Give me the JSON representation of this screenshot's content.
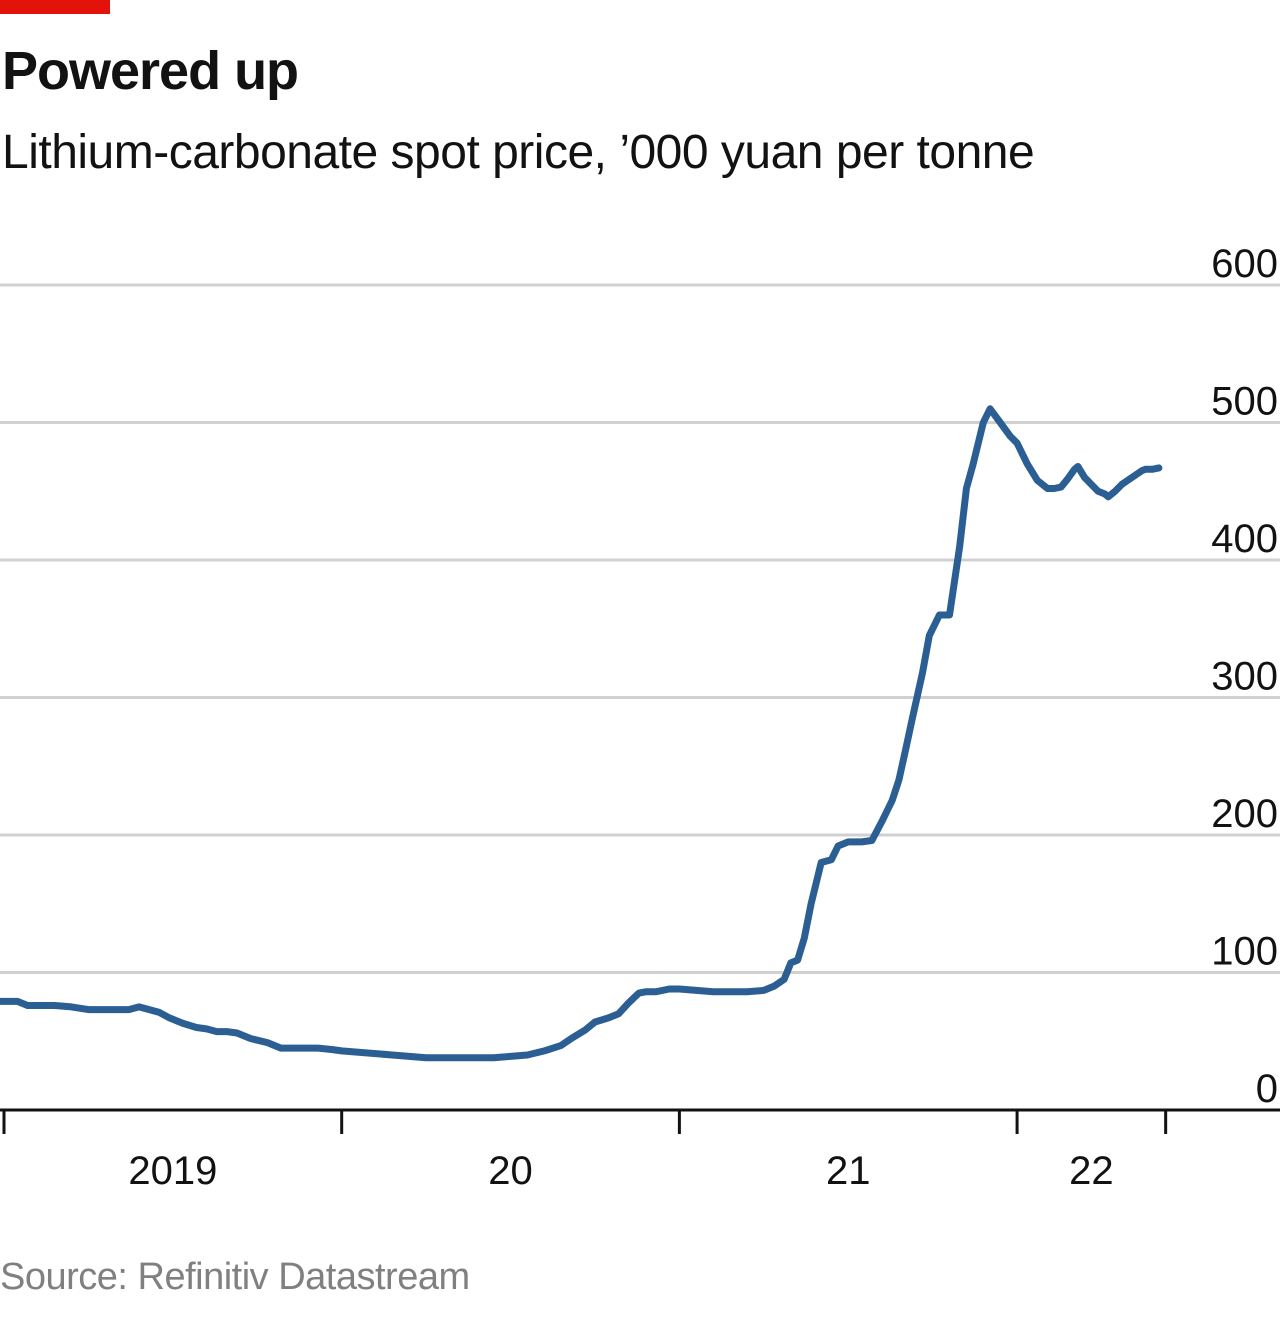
{
  "colors": {
    "brand_red": "#E3120B",
    "line": "#2B5F94",
    "grid": "#d0d0d0",
    "axis": "#121212"
  },
  "title": "Powered up",
  "subtitle": "Lithium-carbonate spot price, ’000 yuan per tonne",
  "source": "Source: Refinitiv Datastream",
  "chart_data": {
    "type": "line",
    "title": "Powered up",
    "subtitle": "Lithium-carbonate spot price, ’000 yuan per tonne",
    "ylim": [
      0,
      600
    ],
    "yticks": [
      0,
      100,
      200,
      300,
      400,
      500,
      600
    ],
    "ytick_labels": [
      "0",
      "100",
      "200",
      "300",
      "400",
      "500",
      "600"
    ],
    "y_axis_side": "right",
    "grid": "horizontal",
    "xlim": [
      2019.0,
      2022.9
    ],
    "xticks": [
      2019.0,
      2020.0,
      2021.0,
      2022.0,
      2022.44
    ],
    "xtick_labels": [
      {
        "text": "2019",
        "at": 2019.5
      },
      {
        "text": "20",
        "at": 2020.5
      },
      {
        "text": "21",
        "at": 2021.5
      },
      {
        "text": "22",
        "at": 2022.22
      }
    ],
    "series": [
      {
        "x": [
          2018.99,
          2019.04,
          2019.07,
          2019.1,
          2019.15,
          2019.2,
          2019.25,
          2019.28,
          2019.32,
          2019.37,
          2019.4,
          2019.43,
          2019.46,
          2019.49,
          2019.53,
          2019.57,
          2019.6,
          2019.63,
          2019.66,
          2019.69,
          2019.73,
          2019.78,
          2019.82,
          2019.87,
          2019.9,
          2019.93,
          2019.97,
          2020.0,
          2020.05,
          2020.1,
          2020.15,
          2020.2,
          2020.25,
          2020.3,
          2020.35,
          2020.4,
          2020.45,
          2020.5,
          2020.55,
          2020.6,
          2020.65,
          2020.68,
          2020.72,
          2020.75,
          2020.79,
          2020.82,
          2020.85,
          2020.88,
          2020.9,
          2020.93,
          2020.97,
          2021.0,
          2021.05,
          2021.1,
          2021.15,
          2021.2,
          2021.25,
          2021.28,
          2021.31,
          2021.33,
          2021.35,
          2021.37,
          2021.39,
          2021.42,
          2021.45,
          2021.47,
          2021.5,
          2021.52,
          2021.54,
          2021.57,
          2021.6,
          2021.63,
          2021.65,
          2021.67,
          2021.69,
          2021.72,
          2021.74,
          2021.77,
          2021.8,
          2021.83,
          2021.85,
          2021.87,
          2021.9,
          2021.92,
          2021.95,
          2021.98,
          2022.0,
          2022.03,
          2022.06,
          2022.09,
          2022.11,
          2022.13,
          2022.15,
          2022.17,
          2022.18,
          2022.2,
          2022.22,
          2022.24,
          2022.26,
          2022.27,
          2022.29,
          2022.31,
          2022.34,
          2022.37,
          2022.38,
          2022.4,
          2022.42
        ],
        "y": [
          79,
          79,
          76,
          76,
          76,
          75,
          73,
          73,
          73,
          73,
          75,
          73,
          71,
          67,
          63,
          60,
          59,
          57,
          57,
          56,
          52,
          49,
          45,
          45,
          45,
          45,
          44,
          43,
          42,
          41,
          40,
          39,
          38,
          38,
          38,
          38,
          38,
          39,
          40,
          43,
          47,
          52,
          58,
          64,
          67,
          70,
          78,
          85,
          86,
          86,
          88,
          88,
          87,
          86,
          86,
          86,
          87,
          90,
          95,
          107,
          109,
          125,
          150,
          180,
          182,
          192,
          195,
          195,
          195,
          196,
          210,
          225,
          240,
          262,
          285,
          318,
          345,
          360,
          360,
          410,
          452,
          470,
          500,
          510,
          500,
          490,
          485,
          470,
          458,
          452,
          452,
          453,
          459,
          466,
          468,
          460,
          455,
          450,
          448,
          446,
          450,
          455,
          460,
          465,
          466,
          466,
          467
        ]
      }
    ]
  }
}
